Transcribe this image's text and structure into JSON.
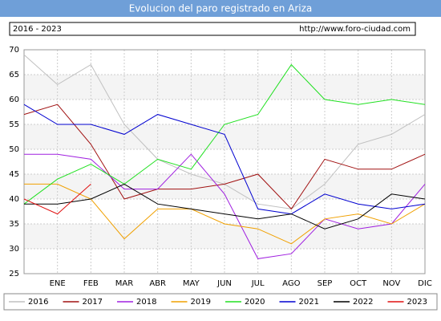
{
  "chart_data": {
    "type": "line",
    "title": "Evolucion del paro registrado en Ariza",
    "subtitle": "2016 - 2023",
    "source": "http://www.foro-ciudad.com",
    "categories": [
      null,
      "ENE",
      "FEB",
      "MAR",
      "ABR",
      "MAY",
      "JUN",
      "JUL",
      "AGO",
      "SEP",
      "OCT",
      "NOV",
      "DIC"
    ],
    "series": [
      {
        "name": "2016",
        "color": "#c0c0c0",
        "values": [
          69,
          63,
          67,
          55,
          48,
          45,
          43,
          39,
          38,
          43,
          51,
          53,
          57
        ]
      },
      {
        "name": "2017",
        "color": "#a01010",
        "values": [
          57,
          59,
          51,
          40,
          42,
          42,
          43,
          45,
          38,
          48,
          46,
          46,
          49
        ]
      },
      {
        "name": "2018",
        "color": "#a020e0",
        "values": [
          49,
          49,
          48,
          42,
          42,
          49,
          41,
          28,
          29,
          36,
          34,
          35,
          43
        ]
      },
      {
        "name": "2019",
        "color": "#f0a000",
        "values": [
          43,
          43,
          40,
          32,
          38,
          38,
          35,
          34,
          31,
          36,
          37,
          35,
          39
        ]
      },
      {
        "name": "2020",
        "color": "#20e020",
        "values": [
          39,
          44,
          47,
          43,
          48,
          46,
          55,
          57,
          67,
          60,
          59,
          60,
          59
        ]
      },
      {
        "name": "2021",
        "color": "#0000d0",
        "values": [
          59,
          55,
          55,
          53,
          57,
          55,
          53,
          38,
          37,
          41,
          39,
          38,
          39
        ]
      },
      {
        "name": "2022",
        "color": "#000000",
        "values": [
          39,
          39,
          40,
          43,
          39,
          38,
          37,
          36,
          37,
          34,
          36,
          41,
          40
        ]
      },
      {
        "name": "2023",
        "color": "#e01010",
        "values": [
          40,
          37,
          43,
          null,
          null,
          null,
          null,
          null,
          null,
          null,
          null,
          null,
          null
        ]
      }
    ],
    "ylim": [
      25,
      70
    ],
    "yticks": [
      25,
      30,
      35,
      40,
      45,
      50,
      55,
      60,
      65,
      70
    ],
    "grid": true
  }
}
